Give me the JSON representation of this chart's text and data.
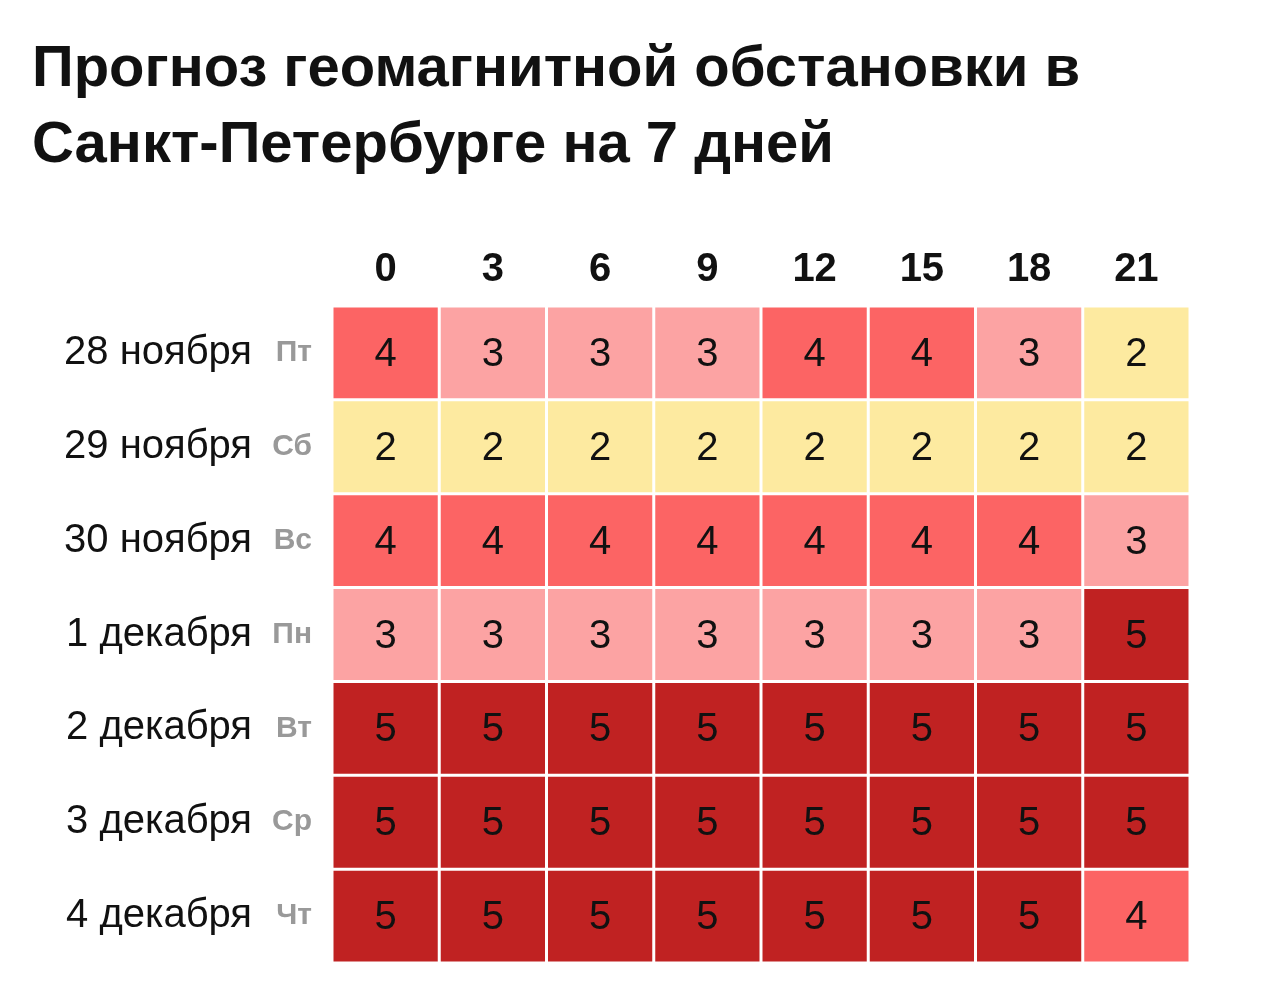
{
  "chart_data": {
    "type": "heatmap",
    "title": "Прогноз геомагнитной обстановки в Санкт-Петербурге на 7 дней",
    "categories": [
      "0",
      "3",
      "6",
      "9",
      "12",
      "15",
      "18",
      "21"
    ],
    "y_categories": [
      "28 ноября",
      "29 ноября",
      "30 ноября",
      "1 декабря",
      "2 декабря",
      "3 декабря",
      "4 декабря"
    ],
    "y2_categories": [
      "Пт",
      "Сб",
      "Вс",
      "Пн",
      "Вт",
      "Ср",
      "Чт"
    ],
    "cells": [
      [
        4,
        3,
        3,
        3,
        4,
        4,
        3,
        2
      ],
      [
        2,
        2,
        2,
        2,
        2,
        2,
        2,
        2
      ],
      [
        4,
        4,
        4,
        4,
        4,
        4,
        4,
        3
      ],
      [
        3,
        3,
        3,
        3,
        3,
        3,
        3,
        5
      ],
      [
        5,
        5,
        5,
        5,
        5,
        5,
        5,
        5
      ],
      [
        5,
        5,
        5,
        5,
        5,
        5,
        5,
        5
      ],
      [
        5,
        5,
        5,
        5,
        5,
        5,
        5,
        4
      ]
    ],
    "colors": [
      [
        "#fc6464",
        "#fca3a3",
        "#fca3a3",
        "#fca3a3",
        "#fc6464",
        "#fc6464",
        "#fca3a3",
        "#fdeaa0"
      ],
      [
        "#fdeaa0",
        "#fdeaa0",
        "#fdeaa0",
        "#fdeaa0",
        "#fdeaa0",
        "#fdeaa0",
        "#fdeaa0",
        "#fdeaa0"
      ],
      [
        "#fc6464",
        "#fc6464",
        "#fc6464",
        "#fc6464",
        "#fc6464",
        "#fc6464",
        "#fc6464",
        "#fca3a3"
      ],
      [
        "#fca3a3",
        "#fca3a3",
        "#fca3a3",
        "#fca3a3",
        "#fca3a3",
        "#fca3a3",
        "#fca3a3",
        "#c02222"
      ],
      [
        "#c02222",
        "#c02222",
        "#c02222",
        "#c02222",
        "#c02222",
        "#c02222",
        "#c02222",
        "#c02222"
      ],
      [
        "#c02222",
        "#c02222",
        "#c02222",
        "#c02222",
        "#c02222",
        "#c02222",
        "#c02222",
        "#c02222"
      ],
      [
        "#c02222",
        "#c02222",
        "#c02222",
        "#c02222",
        "#c02222",
        "#c02222",
        "#c02222",
        "#fc6464"
      ]
    ],
    "data_labels": true,
    "legend": false,
    "grid": false
  }
}
